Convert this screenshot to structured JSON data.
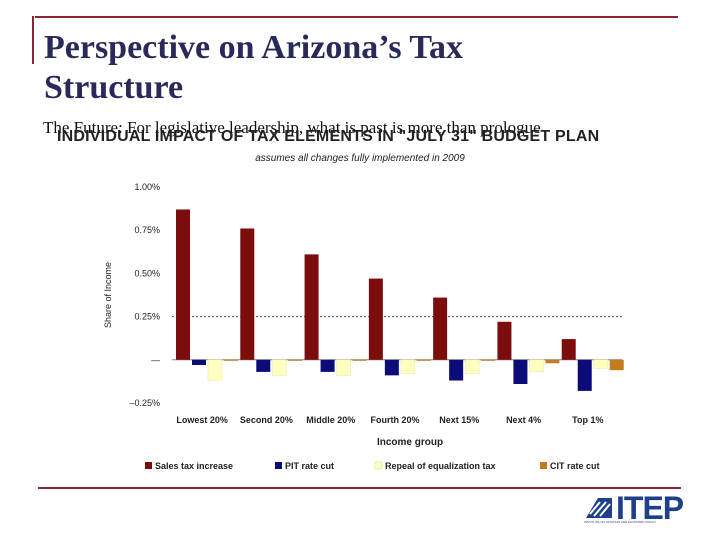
{
  "slide": {
    "title": "Perspective on Arizona’s Tax Structure",
    "subtitle": "The Future: For legislative leadership, what is past is more than prologue"
  },
  "chart_data": {
    "type": "bar",
    "title": "INDIVIDUAL IMPACT OF TAX ELEMENTS IN \"JULY 31\" BUDGET PLAN",
    "subtitle": "assumes all changes fully implemented in 2009",
    "xlabel": "Income group",
    "ylabel": "Share of Income",
    "ylim": [
      -0.25,
      1.0
    ],
    "yticks": [
      "1.00%",
      "0.75%",
      "0.50%",
      "0.25%",
      "—",
      "–0.25%"
    ],
    "categories": [
      "Lowest 20%",
      "Second 20%",
      "Middle 20%",
      "Fourth 20%",
      "Next 15%",
      "Next 4%",
      "Top 1%"
    ],
    "series": [
      {
        "name": "Sales tax increase",
        "color": "#7b0d0d",
        "values": [
          0.87,
          0.76,
          0.61,
          0.47,
          0.36,
          0.22,
          0.12
        ]
      },
      {
        "name": "PIT rate cut",
        "color": "#0b0b7a",
        "values": [
          -0.03,
          -0.07,
          -0.07,
          -0.09,
          -0.12,
          -0.14,
          -0.18
        ]
      },
      {
        "name": "Repeal of equalization tax",
        "color": "#ffffc0",
        "values": [
          -0.12,
          -0.09,
          -0.09,
          -0.08,
          -0.08,
          -0.07,
          -0.05
        ]
      },
      {
        "name": "CIT rate cut",
        "color": "#c47a1e",
        "values": [
          -0.005,
          -0.005,
          -0.005,
          -0.005,
          -0.005,
          -0.02,
          -0.06
        ]
      }
    ],
    "reference_line": 0.25,
    "legend_position": "bottom"
  },
  "logo": {
    "text": "ITEP",
    "tagline": "INSTITUTE ON TAXATION AND ECONOMIC POLICY"
  }
}
